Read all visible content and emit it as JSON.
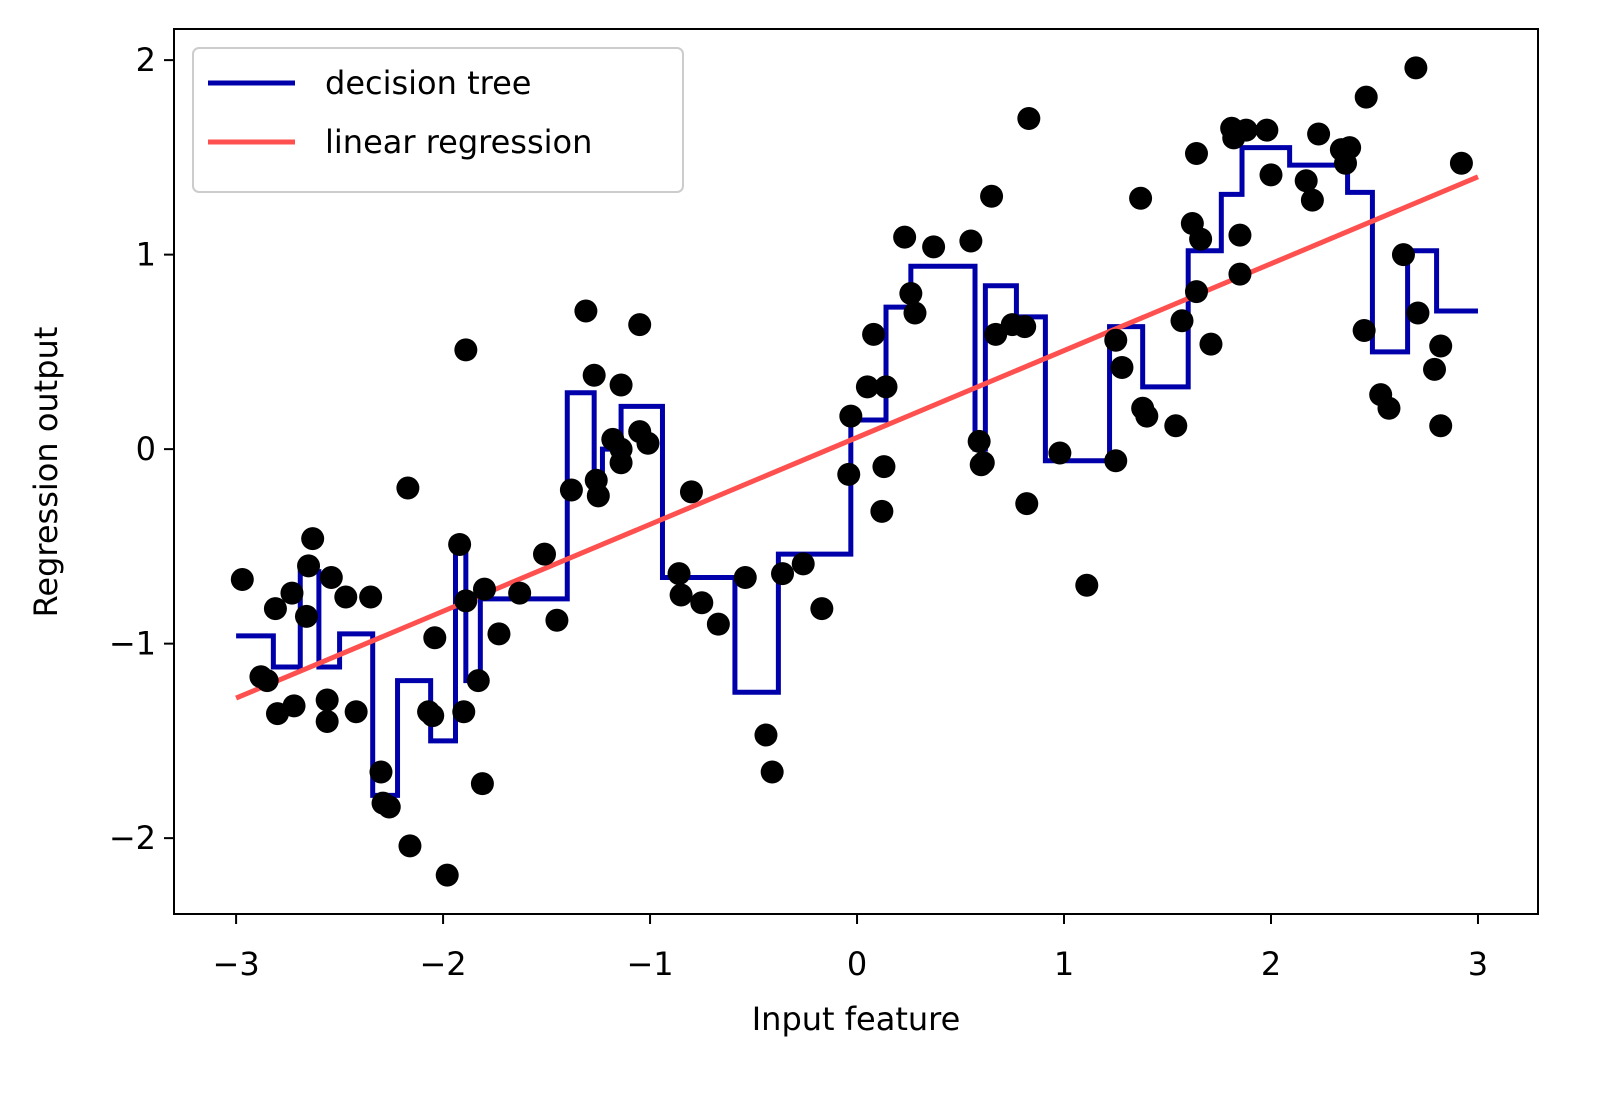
{
  "chart_data": {
    "type": "line",
    "xlabel": "Input feature",
    "ylabel": "Regression output",
    "xlim": [
      -3.3,
      3.29
    ],
    "ylim": [
      -2.39,
      2.16
    ],
    "xticks": [
      {
        "value": -3,
        "label": "−3"
      },
      {
        "value": -2,
        "label": "−2"
      },
      {
        "value": -1,
        "label": "−1"
      },
      0,
      1,
      2,
      3
    ],
    "yticks": [
      {
        "value": -2,
        "label": "−2"
      },
      {
        "value": -1,
        "label": "−1"
      },
      0,
      1,
      2
    ],
    "grid": false,
    "legend": "upper left",
    "series": [
      {
        "name": "decision tree",
        "type": "line",
        "drawstyle": "steps-post",
        "color": "#0000aa",
        "x": [
          -3,
          -2.82,
          -2.69,
          -2.6,
          -2.5,
          -2.34,
          -2.22,
          -2.06,
          -1.94,
          -1.89,
          -1.82,
          -1.4,
          -1.27,
          -1.23,
          -1.14,
          -0.94,
          -0.59,
          -0.38,
          -0.03,
          0.14,
          0.26,
          0.57,
          0.62,
          0.77,
          0.91,
          1.22,
          1.38,
          1.6,
          1.76,
          1.86,
          2.09,
          2.37,
          2.49,
          2.66,
          2.8,
          3
        ],
        "values": [
          -0.96,
          -1.12,
          -0.63,
          -1.12,
          -0.95,
          -1.78,
          -1.19,
          -1.5,
          -0.52,
          -1.19,
          -0.77,
          0.29,
          -0.17,
          0.0,
          0.22,
          -0.66,
          -1.25,
          -0.54,
          0.15,
          0.73,
          0.94,
          0.0,
          0.84,
          0.68,
          -0.06,
          0.63,
          0.32,
          1.02,
          1.31,
          1.55,
          1.46,
          1.32,
          0.5,
          1.02,
          0.71,
          0.71
        ]
      },
      {
        "name": "linear regression",
        "type": "line",
        "color": "#ff5050",
        "x": [
          -3,
          3
        ],
        "values": [
          -1.28,
          1.4
        ]
      },
      {
        "type": "scatter",
        "color": "#000000",
        "x": [
          -2.97,
          -2.88,
          -2.85,
          -2.81,
          -2.8,
          -2.72,
          -2.73,
          -2.65,
          -2.63,
          -2.66,
          -2.56,
          -2.56,
          -2.54,
          -2.47,
          -2.42,
          -2.35,
          -2.3,
          -2.29,
          -2.26,
          -2.17,
          -2.16,
          -2.07,
          -2.05,
          -2.04,
          -1.98,
          -1.92,
          -1.89,
          -1.9,
          -1.89,
          -1.83,
          -1.8,
          -1.81,
          -1.73,
          -1.63,
          -1.51,
          -1.45,
          -1.38,
          -1.31,
          -1.27,
          -1.26,
          -1.25,
          -1.18,
          -1.14,
          -1.14,
          -1.14,
          -1.05,
          -1.05,
          -1.01,
          -0.86,
          -0.85,
          -0.8,
          -0.75,
          -0.67,
          -0.54,
          -0.44,
          -0.41,
          -0.36,
          -0.26,
          -0.17,
          -0.04,
          -0.03,
          0.05,
          0.08,
          0.12,
          0.13,
          0.14,
          0.23,
          0.26,
          0.28,
          0.37,
          0.55,
          0.59,
          0.6,
          0.61,
          0.65,
          0.67,
          0.75,
          0.81,
          0.82,
          0.83,
          0.98,
          1.11,
          1.25,
          1.25,
          1.28,
          1.37,
          1.38,
          1.4,
          1.54,
          1.57,
          1.62,
          1.64,
          1.64,
          1.66,
          1.71,
          1.85,
          1.85,
          1.81,
          1.82,
          1.88,
          1.98,
          2.0,
          2.17,
          2.2,
          2.23,
          2.34,
          2.36,
          2.38,
          2.45,
          2.46,
          2.53,
          2.57,
          2.64,
          2.7,
          2.71,
          2.79,
          2.82,
          2.82,
          2.92
        ],
        "values": [
          -0.67,
          -1.17,
          -1.19,
          -0.82,
          -1.36,
          -1.32,
          -0.74,
          -0.6,
          -0.46,
          -0.86,
          -1.29,
          -1.4,
          -0.66,
          -0.76,
          -1.35,
          -0.76,
          -1.66,
          -1.82,
          -1.84,
          -0.2,
          -2.04,
          -1.35,
          -1.37,
          -0.97,
          -2.19,
          -0.49,
          0.51,
          -1.35,
          -0.78,
          -1.19,
          -0.72,
          -1.72,
          -0.95,
          -0.74,
          -0.54,
          -0.88,
          -0.21,
          0.71,
          0.38,
          -0.16,
          -0.24,
          0.05,
          0.33,
          -0.07,
          0.0,
          0.64,
          0.09,
          0.03,
          -0.64,
          -0.75,
          -0.22,
          -0.79,
          -0.9,
          -0.66,
          -1.47,
          -1.66,
          -0.64,
          -0.59,
          -0.82,
          -0.13,
          0.17,
          0.32,
          0.59,
          -0.32,
          -0.09,
          0.32,
          1.09,
          0.8,
          0.7,
          1.04,
          1.07,
          0.04,
          -0.08,
          -0.07,
          1.3,
          0.59,
          0.64,
          0.63,
          -0.28,
          1.7,
          -0.02,
          -0.7,
          -0.06,
          0.56,
          0.42,
          1.29,
          0.21,
          0.17,
          0.12,
          0.66,
          1.16,
          0.81,
          1.52,
          1.08,
          0.54,
          0.9,
          1.1,
          1.65,
          1.6,
          1.64,
          1.64,
          1.41,
          1.38,
          1.28,
          1.62,
          1.54,
          1.47,
          1.55,
          0.61,
          1.81,
          0.28,
          0.21,
          1.0,
          1.96,
          0.7,
          0.41,
          0.53,
          0.12,
          1.47
        ]
      }
    ]
  }
}
